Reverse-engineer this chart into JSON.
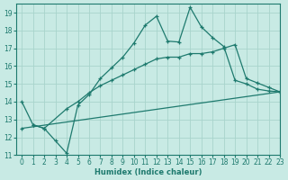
{
  "xlabel": "Humidex (Indice chaleur)",
  "xlim": [
    -0.5,
    23
  ],
  "ylim": [
    11,
    19.5
  ],
  "xticks": [
    0,
    1,
    2,
    3,
    4,
    5,
    6,
    7,
    8,
    9,
    10,
    11,
    12,
    13,
    14,
    15,
    16,
    17,
    18,
    19,
    20,
    21,
    22,
    23
  ],
  "yticks": [
    11,
    12,
    13,
    14,
    15,
    16,
    17,
    18,
    19
  ],
  "bg_color": "#c8eae4",
  "grid_color": "#a8d4cc",
  "line_color": "#1e7a6e",
  "line1_x": [
    0,
    1,
    2,
    3,
    4,
    5,
    6,
    7,
    8,
    9,
    10,
    11,
    12,
    13,
    14,
    15,
    16,
    17,
    18,
    19,
    20,
    21,
    22,
    23
  ],
  "line1_y": [
    14.0,
    12.7,
    12.5,
    11.8,
    11.1,
    13.8,
    14.4,
    15.3,
    15.9,
    16.5,
    17.3,
    18.3,
    18.8,
    17.4,
    17.35,
    19.3,
    18.2,
    17.6,
    17.1,
    15.2,
    15.0,
    14.7,
    14.6,
    14.55
  ],
  "line2_x": [
    1,
    2,
    4,
    5,
    6,
    7,
    8,
    9,
    10,
    11,
    12,
    13,
    14,
    15,
    16,
    17,
    18,
    19,
    20,
    21,
    22,
    23
  ],
  "line2_y": [
    12.7,
    12.5,
    13.6,
    14.0,
    14.5,
    14.9,
    15.2,
    15.5,
    15.8,
    16.1,
    16.4,
    16.5,
    16.5,
    16.7,
    16.7,
    16.8,
    17.0,
    17.2,
    15.3,
    15.05,
    14.8,
    14.55
  ],
  "line3_x": [
    0,
    23
  ],
  "line3_y": [
    12.5,
    14.55
  ]
}
